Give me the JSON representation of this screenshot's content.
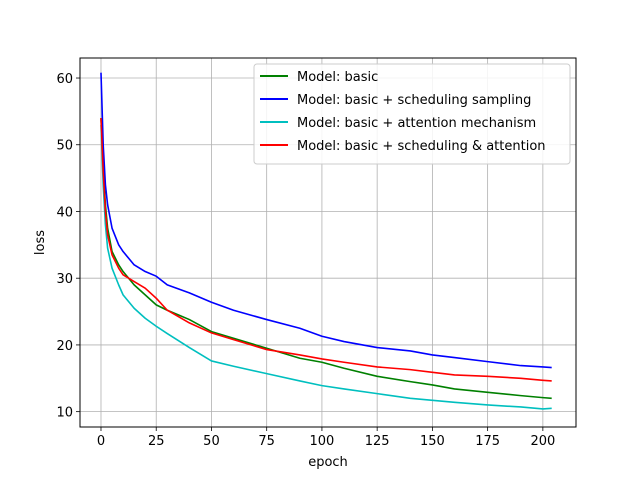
{
  "chart_data": {
    "type": "line",
    "title": "",
    "xlabel": "epoch",
    "ylabel": "loss",
    "xlim": [
      -9.5,
      215
    ],
    "ylim": [
      7.7,
      63
    ],
    "xticks": [
      0,
      25,
      50,
      75,
      100,
      125,
      150,
      175,
      200
    ],
    "yticks": [
      10,
      20,
      30,
      40,
      50,
      60
    ],
    "grid": true,
    "legend_position": "top-right",
    "series": [
      {
        "name": "Model: basic",
        "color": "#008000",
        "x": [
          0,
          1,
          2,
          3,
          5,
          8,
          10,
          15,
          20,
          25,
          30,
          35,
          40,
          50,
          60,
          75,
          90,
          100,
          110,
          125,
          140,
          150,
          160,
          175,
          190,
          200,
          204
        ],
        "y": [
          54,
          47,
          41,
          37.5,
          34,
          32,
          31,
          29,
          27.5,
          26,
          25.2,
          24.5,
          23.8,
          22,
          21,
          19.5,
          18,
          17.4,
          16.5,
          15.3,
          14.5,
          14,
          13.4,
          12.9,
          12.4,
          12.1,
          12
        ]
      },
      {
        "name": "Model: basic + scheduling sampling",
        "color": "#0000ff",
        "x": [
          0,
          1,
          2,
          3,
          5,
          8,
          10,
          15,
          20,
          25,
          30,
          40,
          50,
          60,
          75,
          90,
          100,
          110,
          125,
          140,
          150,
          160,
          175,
          190,
          200,
          204
        ],
        "y": [
          60.8,
          50,
          44,
          41,
          37.5,
          35,
          34,
          32,
          31,
          30.3,
          29,
          27.8,
          26.4,
          25.2,
          23.8,
          22.5,
          21.3,
          20.5,
          19.6,
          19.1,
          18.5,
          18.1,
          17.5,
          16.9,
          16.7,
          16.6
        ]
      },
      {
        "name": "Model: basic + attention mechanism",
        "color": "#00bfbf",
        "x": [
          0,
          1,
          2,
          3,
          5,
          8,
          10,
          15,
          20,
          25,
          30,
          40,
          50,
          60,
          75,
          90,
          100,
          110,
          125,
          140,
          150,
          160,
          175,
          190,
          200,
          204
        ],
        "y": [
          53,
          44,
          38,
          34.5,
          31.5,
          29,
          27.5,
          25.5,
          24,
          22.8,
          21.7,
          19.6,
          17.6,
          16.8,
          15.7,
          14.6,
          13.9,
          13.4,
          12.7,
          12,
          11.7,
          11.4,
          11,
          10.7,
          10.4,
          10.5
        ]
      },
      {
        "name": "Model: basic + scheduling & attention",
        "color": "#ff0000",
        "x": [
          0,
          1,
          2,
          3,
          5,
          8,
          10,
          15,
          20,
          25,
          30,
          40,
          50,
          60,
          75,
          90,
          100,
          110,
          125,
          140,
          150,
          160,
          175,
          190,
          200,
          204
        ],
        "y": [
          54,
          46,
          40,
          36.5,
          33.5,
          31.5,
          30.5,
          29.5,
          28.5,
          27,
          25.2,
          23.3,
          21.8,
          20.8,
          19.3,
          18.5,
          17.9,
          17.4,
          16.7,
          16.3,
          15.9,
          15.5,
          15.3,
          15,
          14.7,
          14.6
        ]
      }
    ]
  }
}
